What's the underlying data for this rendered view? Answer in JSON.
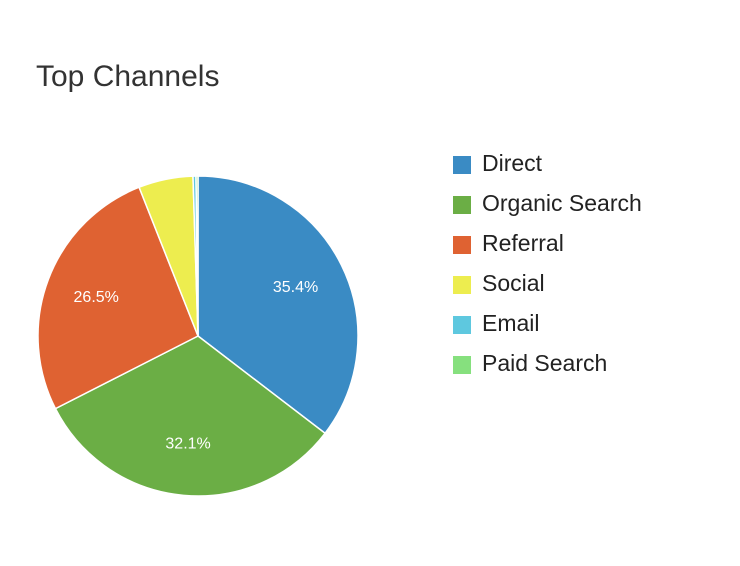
{
  "chart_data": {
    "type": "pie",
    "title": "Top Channels",
    "categories": [
      "Direct",
      "Organic Search",
      "Referral",
      "Social",
      "Email",
      "Paid Search"
    ],
    "values": [
      35.4,
      32.1,
      26.5,
      5.5,
      0.3,
      0.2
    ],
    "value_labels": [
      "35.4%",
      "32.1%",
      "26.5%",
      null,
      null,
      null
    ],
    "colors": [
      "#3a8bc4",
      "#6bae45",
      "#df6232",
      "#eded4f",
      "#5ec8df",
      "#86e07e"
    ],
    "legend": "right"
  }
}
